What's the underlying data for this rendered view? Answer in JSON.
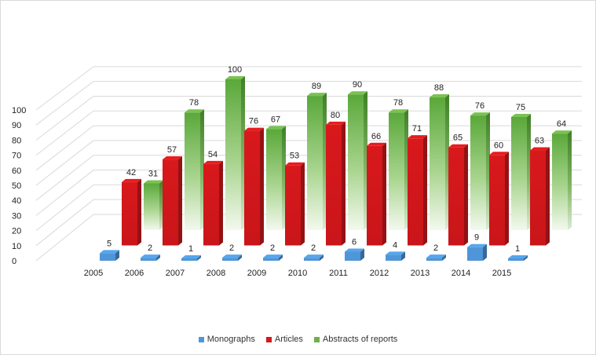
{
  "chart_data": {
    "type": "bar",
    "title": "",
    "xlabel": "",
    "ylabel": "",
    "ylim": [
      0,
      100
    ],
    "y_ticks": [
      "0",
      "10",
      "20",
      "30",
      "40",
      "50",
      "60",
      "70",
      "80",
      "90",
      "100"
    ],
    "grid": true,
    "legend_position": "bottom",
    "categories": [
      "2005",
      "2006",
      "2007",
      "2008",
      "2009",
      "2010",
      "2011",
      "2012",
      "2013",
      "2014",
      "2015"
    ],
    "series": [
      {
        "name": "Monographs",
        "color": "#4f96d8",
        "values": [
          5,
          2,
          1,
          2,
          2,
          2,
          6,
          4,
          2,
          9,
          1
        ]
      },
      {
        "name": "Articles",
        "color": "#d2191c",
        "values": [
          42,
          57,
          54,
          76,
          53,
          80,
          66,
          71,
          65,
          60,
          63
        ]
      },
      {
        "name": "Abstracts of reports",
        "color": "#6fb04a",
        "values": [
          31,
          78,
          100,
          67,
          89,
          90,
          78,
          88,
          76,
          75,
          64
        ]
      }
    ]
  }
}
